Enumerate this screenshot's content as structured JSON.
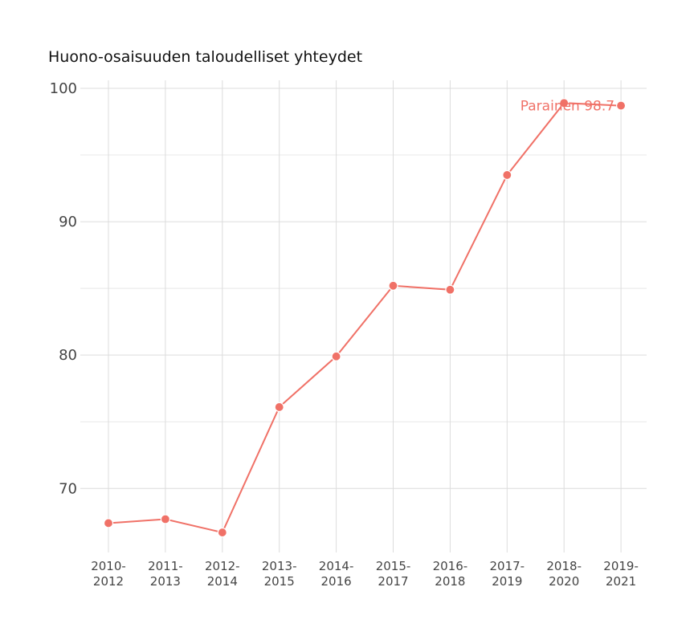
{
  "chart_data": {
    "type": "line",
    "title": "Huono-osaisuuden taloudelliset yhteydet",
    "xlabel": "",
    "ylabel": "",
    "categories": [
      [
        "2010-",
        "2012"
      ],
      [
        "2011-",
        "2013"
      ],
      [
        "2012-",
        "2014"
      ],
      [
        "2013-",
        "2015"
      ],
      [
        "2014-",
        "2016"
      ],
      [
        "2015-",
        "2017"
      ],
      [
        "2016-",
        "2018"
      ],
      [
        "2017-",
        "2019"
      ],
      [
        "2018-",
        "2020"
      ],
      [
        "2019-",
        "2021"
      ]
    ],
    "series": [
      {
        "name": "Parainen",
        "color": "#f07167",
        "values": [
          67.4,
          67.7,
          66.7,
          76.1,
          79.9,
          85.2,
          84.9,
          93.5,
          98.9,
          98.7
        ]
      }
    ],
    "end_label": "Parainen 98.7",
    "ylim": [
      65.2,
      100.6
    ],
    "yticks": [
      70,
      80,
      90,
      100
    ],
    "ytick_labels": [
      "70",
      "80",
      "90",
      "100"
    ],
    "y_minor_gridlines": [
      75,
      85,
      95
    ],
    "grid": true,
    "legend": "none"
  }
}
